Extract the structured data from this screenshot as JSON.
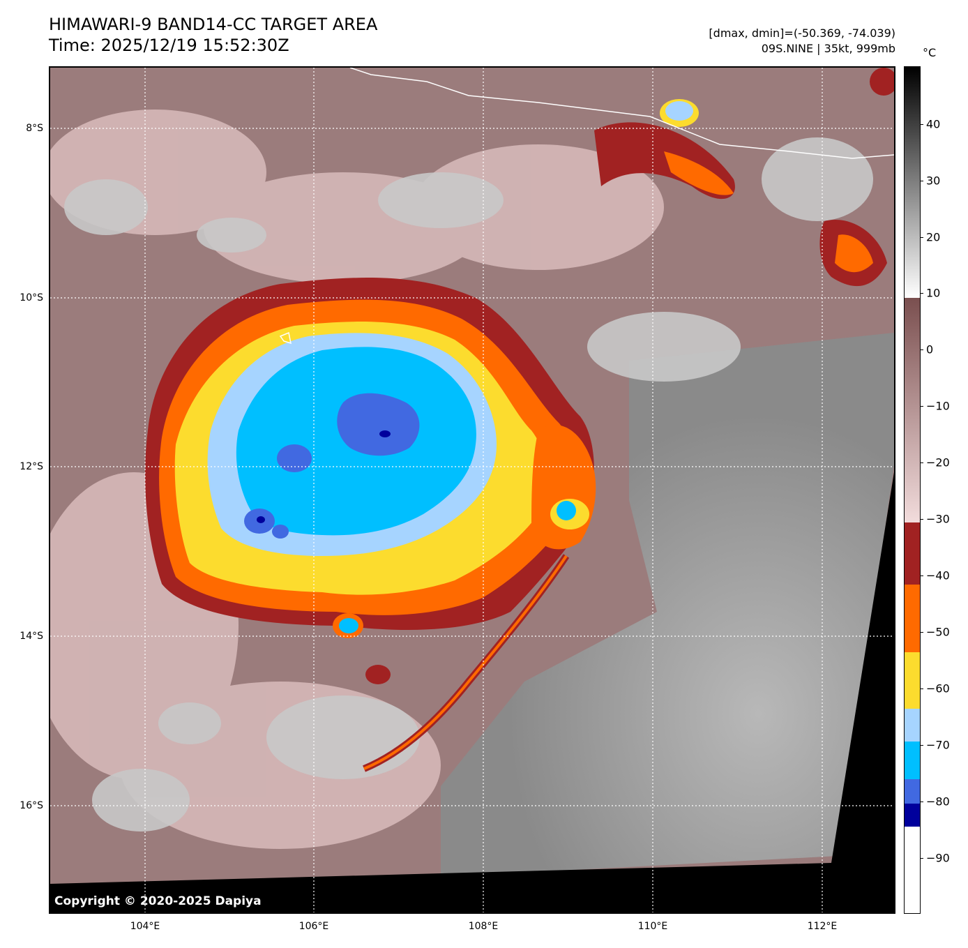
{
  "title": {
    "line1": "HIMAWARI-9 BAND14-CC TARGET AREA",
    "line2": "Time: 2025/12/19 15:52:30Z"
  },
  "info": {
    "line1": "[dmax, dmin]=(-50.369, -74.039)",
    "line2": "09S.NINE | 35kt, 999mb"
  },
  "copyright": "Copyright © 2020-2025 Dapiya",
  "map": {
    "lat_labels": [
      "8°S",
      "10°S",
      "12°S",
      "14°S",
      "16°S"
    ],
    "lon_labels": [
      "104°E",
      "106°E",
      "108°E",
      "110°E",
      "112°E"
    ],
    "gridlines": "dotted-white"
  },
  "colorbar": {
    "unit": "°C",
    "ticks": [
      "40",
      "30",
      "20",
      "10",
      "0",
      "−10",
      "−20",
      "−30",
      "−40",
      "−50",
      "−60",
      "−70",
      "−80",
      "−90"
    ],
    "range": [
      -100,
      50
    ],
    "colors": {
      "black": "#000000",
      "gray_light": "#f0f0f0",
      "brown": "#7a4f4f",
      "pink": "#f2dcdc",
      "dark_red": "#a12222",
      "orange": "#ff6a00",
      "yellow": "#fcdc2e",
      "light_blue": "#a6d4ff",
      "cyan": "#00bfff",
      "royal_blue": "#4169e1",
      "navy": "#00009c",
      "white": "#ffffff"
    }
  }
}
